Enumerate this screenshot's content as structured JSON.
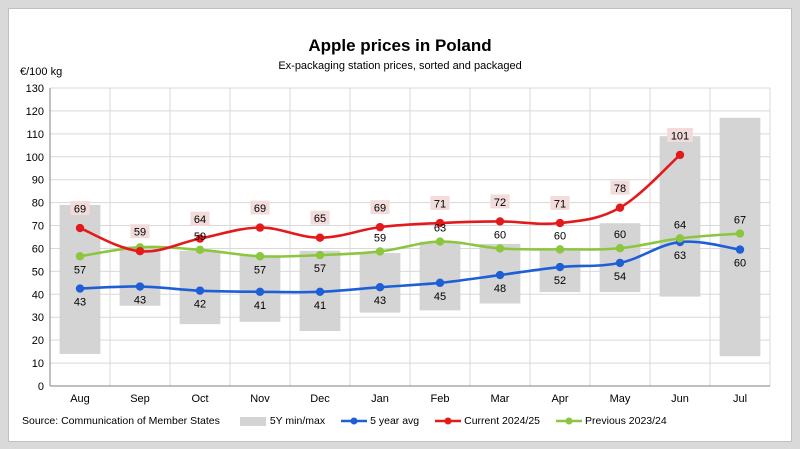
{
  "chart_data": {
    "type": "line",
    "title": "Apple prices in Poland",
    "subtitle": "Ex-packaging station prices, sorted and packaged",
    "ylabel": "€/100 kg",
    "xlabel": "",
    "ylim": [
      0,
      130
    ],
    "yticks": [
      0,
      10,
      20,
      30,
      40,
      50,
      60,
      70,
      80,
      90,
      100,
      110,
      120,
      130
    ],
    "categories": [
      "Aug",
      "Sep",
      "Oct",
      "Nov",
      "Dec",
      "Jan",
      "Feb",
      "Mar",
      "Apr",
      "May",
      "Jun",
      "Jul"
    ],
    "range_series": {
      "name": "5Y min/max",
      "color": "#d4d4d4",
      "min": [
        14,
        35,
        27,
        28,
        24,
        32,
        33,
        36,
        41,
        41,
        39,
        13
      ],
      "max": [
        79,
        61,
        59,
        57,
        59,
        58,
        63,
        62,
        59,
        71,
        109,
        117
      ]
    },
    "series": [
      {
        "name": "5 year avg",
        "color": "#1f5fd6",
        "values": [
          42.5,
          43.4,
          41.6,
          41.1,
          41.1,
          43.1,
          45.0,
          48.4,
          51.9,
          53.7,
          62.8,
          59.5
        ],
        "labels": [
          "43",
          "43",
          "42",
          "41",
          "41",
          "43",
          "45",
          "48",
          "52",
          "54",
          "63",
          "60"
        ]
      },
      {
        "name": "Current 2024/25",
        "color": "#e31a1c",
        "values": [
          68.9,
          58.8,
          64.3,
          69.1,
          64.7,
          69.3,
          71.1,
          71.8,
          71.1,
          77.8,
          100.8,
          null
        ],
        "labels": [
          "69",
          "59",
          "64",
          "69",
          "65",
          "69",
          "71",
          "72",
          "71",
          "78",
          "101",
          ""
        ]
      },
      {
        "name": "Previous 2023/24",
        "color": "#8cc63f",
        "values": [
          56.6,
          60.5,
          59.4,
          56.6,
          57.1,
          58.7,
          63.0,
          60.0,
          59.6,
          60.1,
          64.4,
          66.5
        ],
        "labels": [
          "57",
          "",
          "59",
          "57",
          "57",
          "59",
          "63",
          "60",
          "60",
          "60",
          "64",
          "67"
        ]
      }
    ]
  },
  "legend": {
    "source": "Source: Communication  of Member States",
    "range": "5Y min/max",
    "avg": "5 year avg",
    "current": "Current 2024/25",
    "previous": "Previous 2023/24"
  }
}
